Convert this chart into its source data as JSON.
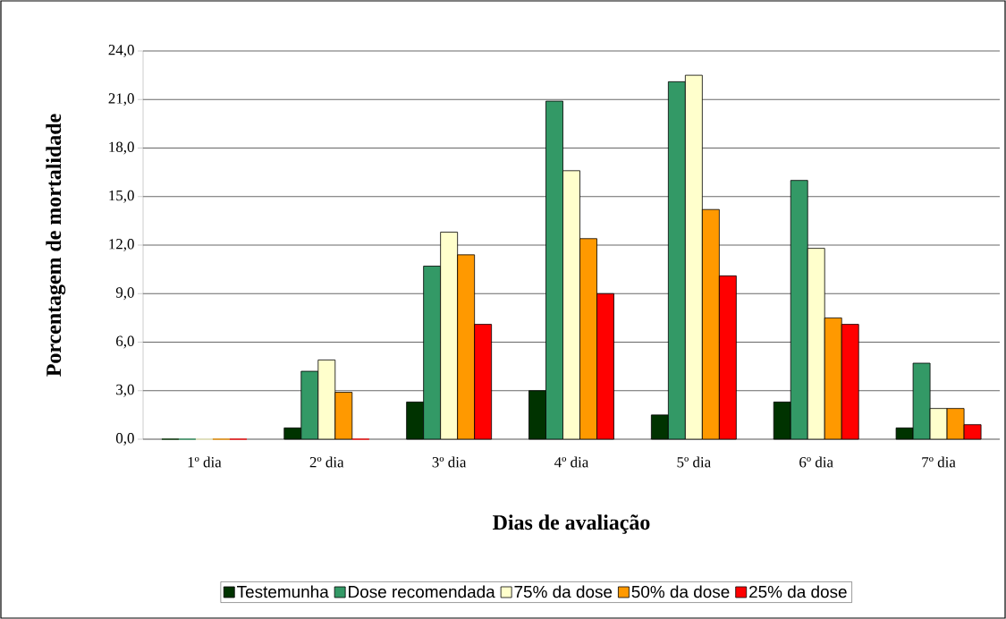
{
  "chart_data": {
    "type": "bar",
    "xlabel": "Dias de avaliação",
    "ylabel": "Porcentagem de mortalidade",
    "categories": [
      "1º dia",
      "2º dia",
      "3º dia",
      "4º dia",
      "5º dia",
      "6º dia",
      "7º dia"
    ],
    "series": [
      {
        "name": "Testemunha",
        "color": "#003300",
        "values": [
          0,
          0.7,
          2.3,
          3.0,
          1.5,
          2.3,
          0.7
        ]
      },
      {
        "name": "Dose recomendada",
        "color": "#339966",
        "values": [
          0,
          4.2,
          10.7,
          20.9,
          22.1,
          16.0,
          4.7
        ]
      },
      {
        "name": "75% da dose",
        "color": "#ffffcc",
        "values": [
          0,
          4.9,
          12.8,
          16.6,
          22.5,
          11.8,
          1.9
        ]
      },
      {
        "name": "50% da dose",
        "color": "#ff9900",
        "values": [
          0,
          2.9,
          11.4,
          12.4,
          14.2,
          7.5,
          1.9
        ]
      },
      {
        "name": "25% da dose",
        "color": "#ff0000",
        "values": [
          0,
          0,
          7.1,
          9.0,
          10.1,
          7.1,
          0.9
        ]
      }
    ],
    "ylim": [
      0,
      24
    ],
    "yticks": [
      {
        "value": 0,
        "label": "0,0"
      },
      {
        "value": 3,
        "label": "3,0"
      },
      {
        "value": 6,
        "label": "6,0"
      },
      {
        "value": 9,
        "label": "9,0"
      },
      {
        "value": 12,
        "label": "12,0"
      },
      {
        "value": 15,
        "label": "15,0"
      },
      {
        "value": 18,
        "label": "18,0"
      },
      {
        "value": 21,
        "label": "21,0"
      },
      {
        "value": 24,
        "label": "24,0"
      }
    ],
    "grid": "y",
    "legend": "bottom"
  }
}
